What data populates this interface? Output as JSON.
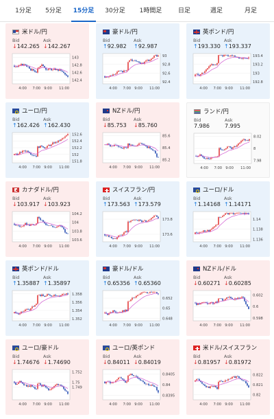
{
  "tabs": [
    {
      "label": "1分足",
      "active": false
    },
    {
      "label": "5分足",
      "active": false
    },
    {
      "label": "15分足",
      "active": true
    },
    {
      "label": "30分足",
      "active": false
    },
    {
      "label": "1時間足",
      "active": false
    },
    {
      "label": "日足",
      "active": false
    },
    {
      "label": "週足",
      "active": false
    },
    {
      "label": "月足",
      "active": false
    }
  ],
  "labels": {
    "bid": "Bid",
    "ask": "Ask"
  },
  "x_ticks": [
    "4:00",
    "7:00",
    "9:00",
    "11:00"
  ],
  "cards": [
    {
      "name": "米ドル/円",
      "flag": "us",
      "trend": "down",
      "bid": "142.265",
      "ask": "142.267",
      "yticks": [
        "143",
        "142.8",
        "142.6",
        "142.4"
      ],
      "ylim": [
        142.3,
        143.1
      ]
    },
    {
      "name": "豪ドル/円",
      "flag": "au",
      "trend": "up",
      "bid": "92.982",
      "ask": "92.987",
      "yticks": [
        "93",
        "92.8",
        "92.6",
        "92.4"
      ],
      "ylim": [
        92.35,
        93.05
      ]
    },
    {
      "name": "英ポンド/円",
      "flag": "gb",
      "trend": "up",
      "bid": "193.330",
      "ask": "193.337",
      "yticks": [
        "193.4",
        "193.2",
        "193",
        "192.8"
      ],
      "ylim": [
        192.75,
        193.45
      ]
    },
    {
      "name": "ユーロ/円",
      "flag": "eu",
      "trend": "up",
      "bid": "162.426",
      "ask": "162.430",
      "yticks": [
        "152.6",
        "152.4",
        "152.2",
        "152",
        "151.8"
      ],
      "ylim": [
        151.75,
        152.65
      ]
    },
    {
      "name": "NZドル/円",
      "flag": "nz",
      "trend": "down",
      "bid": "85.753",
      "ask": "85.760",
      "yticks": [
        "85.6",
        "85.4",
        "85.2"
      ],
      "ylim": [
        85.15,
        85.65
      ]
    },
    {
      "name": "ランド/円",
      "flag": "za",
      "trend": "flat",
      "bid": "7.986",
      "ask": "7.995",
      "yticks": [
        "8.02",
        "8",
        "7.98"
      ],
      "ylim": [
        7.975,
        8.025
      ]
    },
    {
      "name": "カナダドル/円",
      "flag": "ca",
      "trend": "down",
      "bid": "103.917",
      "ask": "103.923",
      "yticks": [
        "104.2",
        "104",
        "103.8",
        "103.6"
      ],
      "ylim": [
        103.55,
        104.25
      ]
    },
    {
      "name": "スイスフラン/円",
      "flag": "ch",
      "trend": "up",
      "bid": "173.563",
      "ask": "173.579",
      "yticks": [
        "173.8",
        "173.6"
      ],
      "ylim": [
        173.5,
        173.9
      ]
    },
    {
      "name": "ユーロ/ドル",
      "flag": "eu",
      "trend": "up",
      "bid": "1.14168",
      "ask": "1.14171",
      "yticks": [
        "1.14",
        "1.138",
        "1.136"
      ],
      "ylim": [
        1.1355,
        1.1415
      ]
    },
    {
      "name": "英ポンド/ドル",
      "flag": "gb",
      "trend": "up",
      "bid": "1.35887",
      "ask": "1.35897",
      "yticks": [
        "1.358",
        "1.356",
        "1.354",
        "1.352"
      ],
      "ylim": [
        1.3515,
        1.3588
      ]
    },
    {
      "name": "豪ドル/ドル",
      "flag": "au",
      "trend": "up",
      "bid": "0.65356",
      "ask": "0.65360",
      "yticks": [
        "0.652",
        "0.65",
        "0.648"
      ],
      "ylim": [
        0.6475,
        0.6535
      ]
    },
    {
      "name": "NZドル/ドル",
      "flag": "nz",
      "trend": "down",
      "bid": "0.60271",
      "ask": "0.60285",
      "yticks": [
        "0.602",
        "0.6",
        "0.598"
      ],
      "ylim": [
        0.5975,
        0.6028
      ]
    },
    {
      "name": "ユーロ/豪ドル",
      "flag": "eu",
      "trend": "down",
      "bid": "1.74676",
      "ask": "1.74690",
      "yticks": [
        "1.752",
        "1.75",
        "1.749"
      ],
      "ylim": [
        1.7465,
        1.7525
      ]
    },
    {
      "name": "ユーロ/英ポンド",
      "flag": "eu",
      "trend": "down",
      "bid": "0.84011",
      "ask": "0.84019",
      "yticks": [
        "0.8405",
        "0.84",
        "0.8395"
      ],
      "ylim": [
        0.8393,
        0.8407
      ]
    },
    {
      "name": "米ドル/スイスフラン",
      "flag": "ch",
      "trend": "down",
      "bid": "0.81957",
      "ask": "0.81972",
      "yticks": [
        "0.822",
        "0.821",
        "0.82"
      ],
      "ylim": [
        0.8195,
        0.8225
      ]
    }
  ]
}
